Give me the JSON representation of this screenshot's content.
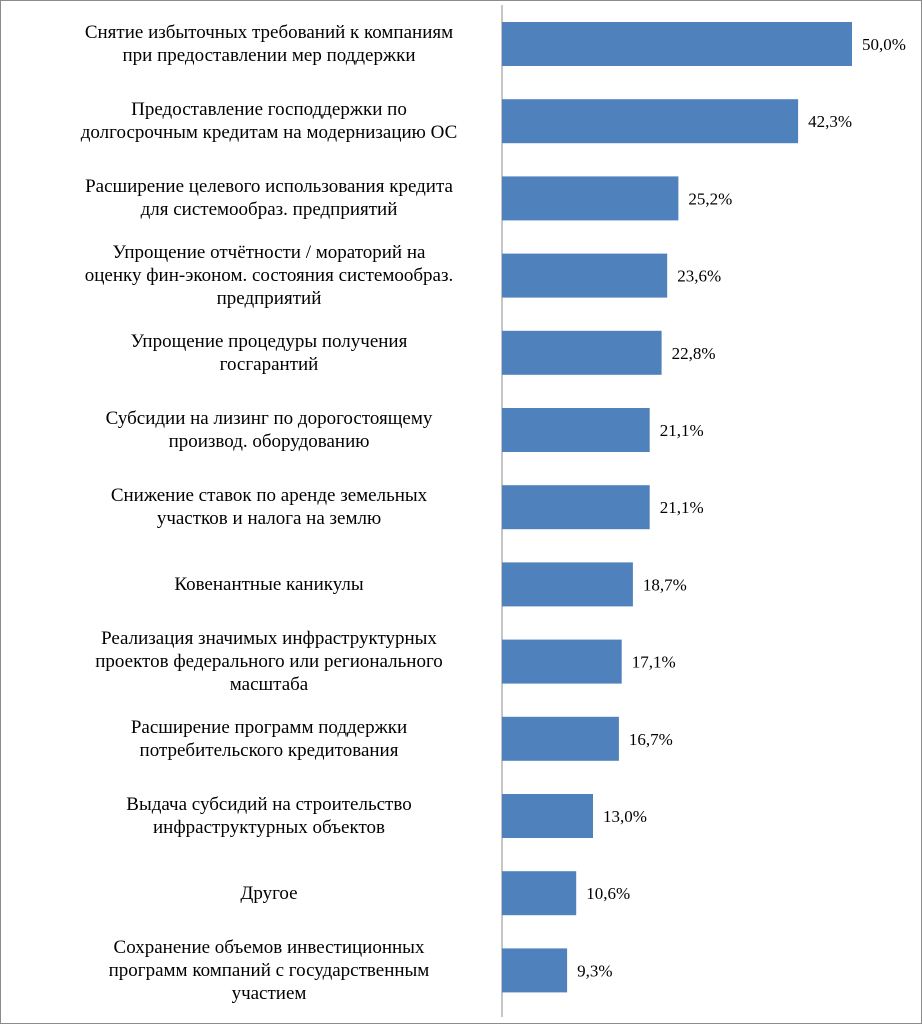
{
  "chart_data": {
    "type": "bar",
    "orientation": "horizontal",
    "title": "",
    "xlabel": "",
    "ylabel": "",
    "xlim": [
      0,
      50
    ],
    "grid": false,
    "legend": "none",
    "bar_color": "#4f81bd",
    "axis_color": "#8c8c8c",
    "value_suffix": "%",
    "categories": [
      "Снятие избыточных требований к компаниям\nпри предоставлении мер поддержки",
      "Предоставление господдержки по\nдолгосрочным кредитам на модернизацию ОС",
      "Расширение целевого использования кредита\nдля системообраз. предприятий",
      "Упрощение отчётности / мораторий на\nоценку фин-эконом. состояния системообраз.\nпредприятий",
      "Упрощение процедуры получения\nгосгарантий",
      "Субсидии на лизинг по дорогостоящему\nпроизвод. оборудованию",
      "Снижение ставок по аренде земельных\nучастков и налога на землю",
      "Ковенантные каникулы",
      "Реализация значимых инфраструктурных\nпроектов федерального или регионального\nмасштаба",
      "Расширение программ поддержки\nпотребительского кредитования",
      "Выдача субсидий на строительство\nинфраструктурных объектов",
      "Другое",
      "Сохранение объемов инвестиционных\nпрограмм компаний с государственным\nучастием"
    ],
    "values": [
      50.0,
      42.3,
      25.2,
      23.6,
      22.8,
      21.1,
      21.1,
      18.7,
      17.1,
      16.7,
      13.0,
      10.6,
      9.3
    ],
    "value_labels": [
      "50,0%",
      "42,3%",
      "25,2%",
      "23,6%",
      "22,8%",
      "21,1%",
      "21,1%",
      "18,7%",
      "17,1%",
      "16,7%",
      "13,0%",
      "10,6%",
      "9,3%"
    ]
  }
}
